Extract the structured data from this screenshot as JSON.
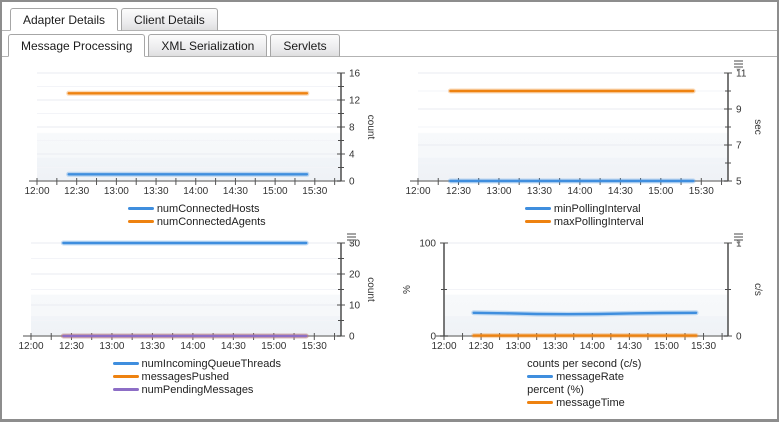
{
  "tabs": {
    "level1": [
      {
        "label": "Adapter Details",
        "active": true
      },
      {
        "label": "Client Details",
        "active": false
      }
    ],
    "level2": [
      {
        "label": "Message Processing",
        "active": true
      },
      {
        "label": "XML Serialization",
        "active": false
      },
      {
        "label": "Servlets",
        "active": false
      }
    ]
  },
  "colors": {
    "blue": "#3f8ede",
    "orange": "#ee8210",
    "purple": "#8d6ec6",
    "grid": "#e9ebf1",
    "minor_grid": "#f3f4f8",
    "axis": "#4c4c4c",
    "x_axis": "#8a8a8a",
    "tick_text": "#333333"
  },
  "chart_data": [
    {
      "id": "connected-counts",
      "type": "line",
      "menu_icon": false,
      "x_axis": {
        "min": 12,
        "max": 15.83,
        "minor_step": 0.25,
        "tick_values": [
          12,
          12.5,
          13,
          13.5,
          14,
          14.5,
          15,
          15.5
        ],
        "tick_labels": [
          "12:00",
          "12:30",
          "13:00",
          "13:30",
          "14:00",
          "14:30",
          "15:00",
          "15:30"
        ]
      },
      "right_axis": {
        "label": "count",
        "min": 0,
        "max": 16,
        "majors": [
          0,
          4,
          8,
          12,
          16
        ],
        "minor_step": 2
      },
      "series": [
        {
          "name": "numConnectedAgents",
          "color": "orange",
          "axis": "right",
          "x": [
            12.4,
            15.4
          ],
          "y": [
            13,
            13
          ]
        },
        {
          "name": "numConnectedHosts",
          "color": "blue",
          "axis": "right",
          "x": [
            12.4,
            15.4
          ],
          "y": [
            1,
            1
          ]
        }
      ],
      "legend": [
        {
          "type": "item",
          "label": "numConnectedHosts",
          "color": "blue"
        },
        {
          "type": "item",
          "label": "numConnectedAgents",
          "color": "orange"
        }
      ]
    },
    {
      "id": "polling-interval",
      "type": "line",
      "menu_icon": true,
      "x_axis": {
        "min": 12,
        "max": 15.83,
        "minor_step": 0.25,
        "tick_values": [
          12,
          12.5,
          13,
          13.5,
          14,
          14.5,
          15,
          15.5
        ],
        "tick_labels": [
          "12:00",
          "12:30",
          "13:00",
          "13:30",
          "14:00",
          "14:30",
          "15:00",
          "15:30"
        ]
      },
      "right_axis": {
        "label": "sec",
        "min": 5,
        "max": 11,
        "majors": [
          5,
          7,
          9,
          11
        ],
        "minor_step": 1
      },
      "series": [
        {
          "name": "maxPollingInterval",
          "color": "orange",
          "axis": "right",
          "x": [
            12.4,
            15.4
          ],
          "y": [
            10,
            10
          ]
        },
        {
          "name": "minPollingInterval",
          "color": "blue",
          "axis": "right",
          "x": [
            12.4,
            15.4
          ],
          "y": [
            5,
            5
          ]
        }
      ],
      "legend": [
        {
          "type": "item",
          "label": "minPollingInterval",
          "color": "blue"
        },
        {
          "type": "item",
          "label": "maxPollingInterval",
          "color": "orange"
        }
      ]
    },
    {
      "id": "queue-messages",
      "type": "line",
      "menu_icon": true,
      "x_axis": {
        "min": 12,
        "max": 15.83,
        "minor_step": 0.25,
        "tick_values": [
          12,
          12.5,
          13,
          13.5,
          14,
          14.5,
          15,
          15.5
        ],
        "tick_labels": [
          "12:00",
          "12:30",
          "13:00",
          "13:30",
          "14:00",
          "14:30",
          "15:00",
          "15:30"
        ]
      },
      "right_axis": {
        "label": "count",
        "min": 0,
        "max": 30,
        "majors": [
          0,
          10,
          20,
          30
        ],
        "minor_step": 5
      },
      "series": [
        {
          "name": "numIncomingQueueThreads",
          "color": "blue",
          "axis": "right",
          "x": [
            12.4,
            15.4
          ],
          "y": [
            30,
            30
          ]
        },
        {
          "name": "messagesPushed",
          "color": "orange",
          "axis": "right",
          "x": [
            12.4,
            15.4
          ],
          "y": [
            0,
            0
          ]
        },
        {
          "name": "numPendingMessages",
          "color": "purple",
          "axis": "right",
          "x": [
            12.4,
            15.4
          ],
          "y": [
            0,
            0
          ]
        }
      ],
      "legend": [
        {
          "type": "item",
          "label": "numIncomingQueueThreads",
          "color": "blue"
        },
        {
          "type": "item",
          "label": "messagesPushed",
          "color": "orange"
        },
        {
          "type": "item",
          "label": "numPendingMessages",
          "color": "purple"
        }
      ]
    },
    {
      "id": "message-rate",
      "type": "line",
      "menu_icon": true,
      "x_axis": {
        "min": 12,
        "max": 15.83,
        "minor_step": 0.25,
        "tick_values": [
          12,
          12.5,
          13,
          13.5,
          14,
          14.5,
          15,
          15.5
        ],
        "tick_labels": [
          "12:00",
          "12:30",
          "13:00",
          "13:30",
          "14:00",
          "14:30",
          "15:00",
          "15:30"
        ]
      },
      "left_axis": {
        "label": "%",
        "min": 0,
        "max": 100,
        "majors": [
          0,
          100
        ],
        "minor_step": 50
      },
      "right_axis": {
        "label": "c/s",
        "min": 0,
        "max": 1,
        "majors": [
          0,
          1
        ],
        "minor_step": 0.5
      },
      "series": [
        {
          "name": "messageTime",
          "color": "orange",
          "axis": "left",
          "x": [
            12.4,
            15.4
          ],
          "y": [
            0.4,
            0.4
          ]
        },
        {
          "name": "messageRate",
          "color": "blue",
          "axis": "right",
          "x": [
            12.4,
            12.83,
            13.25,
            13.67,
            14.08,
            14.5,
            14.95,
            15.4
          ],
          "y": [
            0.25,
            0.244,
            0.237,
            0.234,
            0.237,
            0.243,
            0.247,
            0.249
          ]
        }
      ],
      "legend": [
        {
          "type": "header",
          "label": "counts per second (c/s)"
        },
        {
          "type": "item",
          "label": "messageRate",
          "color": "blue"
        },
        {
          "type": "header",
          "label": "percent (%)"
        },
        {
          "type": "item",
          "label": "messageTime",
          "color": "orange"
        }
      ]
    }
  ]
}
